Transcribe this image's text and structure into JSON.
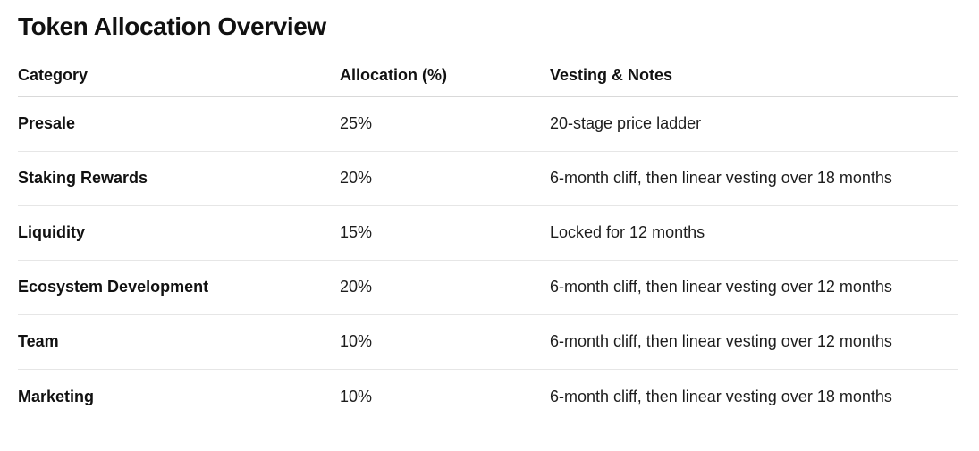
{
  "title": "Token Allocation Overview",
  "table": {
    "headers": [
      "Category",
      "Allocation (%)",
      "Vesting & Notes"
    ],
    "rows": [
      [
        "Presale",
        "25%",
        "20-stage price ladder"
      ],
      [
        "Staking Rewards",
        "20%",
        "6-month cliff, then linear vesting over 18 months"
      ],
      [
        "Liquidity",
        "15%",
        "Locked for 12 months"
      ],
      [
        "Ecosystem Development",
        "20%",
        "6-month cliff, then linear vesting over 12 months"
      ],
      [
        "Team",
        "10%",
        "6-month cliff, then linear vesting over 12 months"
      ],
      [
        "Marketing",
        "10%",
        "6-month cliff, then linear vesting over 18 months"
      ]
    ]
  }
}
